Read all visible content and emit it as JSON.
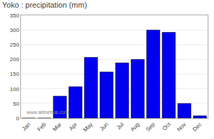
{
  "chart_data": {
    "type": "bar",
    "title": "Yoko : precipitation (mm)",
    "categories": [
      "Jan",
      "Feb",
      "Mar",
      "Apr",
      "May",
      "Jun",
      "Jul",
      "Aug",
      "Sep",
      "Oct",
      "Nov",
      "Dec"
    ],
    "values": [
      0,
      0,
      75,
      107,
      207,
      157,
      188,
      200,
      300,
      292,
      50,
      8
    ],
    "color": "#0000ee",
    "ylim": [
      0,
      350
    ],
    "yticks": [
      0,
      50,
      100,
      150,
      200,
      250,
      300,
      350
    ],
    "grid": true,
    "annotations": [
      "www.allmetsat.com"
    ]
  }
}
